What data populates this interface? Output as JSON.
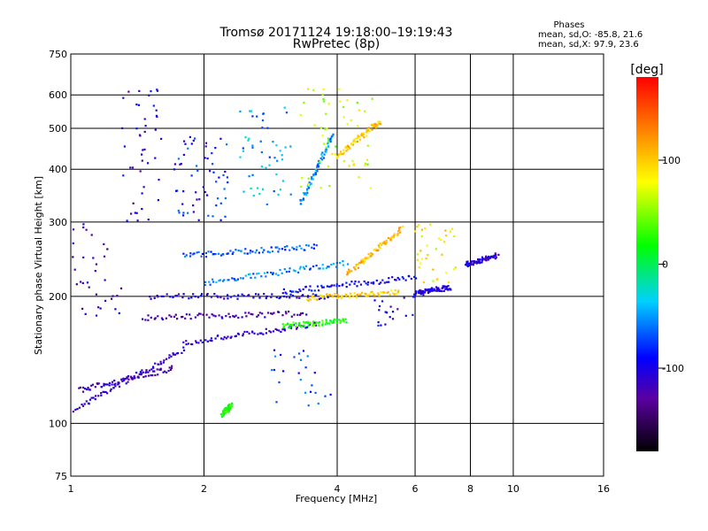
{
  "chart_data": {
    "type": "scatter",
    "title": "Tromsø 20171124 19:18:00–19:19:43",
    "subtitle": "RwPretec (8p)",
    "xlabel": "Frequency [MHz]",
    "ylabel": "Stationary phase Virtual Height [km]",
    "x_scale": "log",
    "y_scale": "log",
    "xlim": [
      1,
      16
    ],
    "ylim": [
      75,
      750
    ],
    "x_ticks": [
      1,
      2,
      4,
      6,
      8,
      10,
      16
    ],
    "x_tick_labels": [
      "1",
      "2",
      "4",
      "6",
      "8",
      "10",
      "16"
    ],
    "y_ticks": [
      75,
      100,
      200,
      300,
      400,
      500,
      600,
      750
    ],
    "y_tick_labels": [
      "75",
      "100",
      "200",
      "300",
      "400",
      "500",
      "600",
      "750"
    ],
    "grid": true,
    "stats": {
      "title": "Phases",
      "line_o": "mean, sd,O: -85.8, 21.6",
      "line_x": "mean, sd,X: 97.9, 23.6"
    },
    "colorbar": {
      "label": "[deg]",
      "range": [
        -180,
        180
      ],
      "ticks": [
        100,
        0,
        -100
      ],
      "tick_labels": [
        "100",
        "0",
        "-100"
      ],
      "placement": "right"
    },
    "traces": [
      {
        "name": "",
        "x_start": 1.02,
        "x_end": 1.8,
        "y_start": 108,
        "y_end": 150,
        "phase": -115
      },
      {
        "name": "",
        "x_start": 1.05,
        "x_end": 1.7,
        "y_start": 120,
        "y_end": 135,
        "phase": -120
      },
      {
        "name": "",
        "x_start": 1.8,
        "x_end": 3.6,
        "y_start": 155,
        "y_end": 172,
        "phase": -110
      },
      {
        "name": "",
        "x_start": 1.45,
        "x_end": 3.4,
        "y_start": 178,
        "y_end": 182,
        "phase": -125
      },
      {
        "name": "",
        "x_start": 1.5,
        "x_end": 3.8,
        "y_start": 200,
        "y_end": 200,
        "phase": -100
      },
      {
        "name": "",
        "x_start": 3.0,
        "x_end": 6.0,
        "y_start": 205,
        "y_end": 222,
        "phase": -95
      },
      {
        "name": "",
        "x_start": 3.0,
        "x_end": 4.2,
        "y_start": 170,
        "y_end": 175,
        "phase": 20
      },
      {
        "name": "",
        "x_start": 3.4,
        "x_end": 5.5,
        "y_start": 198,
        "y_end": 205,
        "phase": 95
      },
      {
        "name": "",
        "x_start": 4.2,
        "x_end": 5.6,
        "y_start": 225,
        "y_end": 290,
        "phase": 105
      },
      {
        "name": "",
        "x_start": 4.0,
        "x_end": 5.0,
        "y_start": 430,
        "y_end": 520,
        "phase": 100
      },
      {
        "name": "",
        "x_start": 6.0,
        "x_end": 7.2,
        "y_start": 203,
        "y_end": 210,
        "phase": -105
      },
      {
        "name": "",
        "x_start": 7.8,
        "x_end": 9.2,
        "y_start": 238,
        "y_end": 250,
        "phase": -110
      },
      {
        "name": "",
        "x_start": 1.8,
        "x_end": 3.6,
        "y_start": 250,
        "y_end": 262,
        "phase": -70
      },
      {
        "name": "",
        "x_start": 2.0,
        "x_end": 4.2,
        "y_start": 215,
        "y_end": 240,
        "phase": -60
      },
      {
        "name": "",
        "x_start": 3.3,
        "x_end": 3.9,
        "y_start": 330,
        "y_end": 480,
        "phase": -55
      },
      {
        "name": "",
        "x_start": 2.2,
        "x_end": 2.3,
        "y_start": 105,
        "y_end": 110,
        "phase": 20
      }
    ],
    "scatter_regions": [
      {
        "x_min": 1.3,
        "x_max": 1.6,
        "y_min": 300,
        "y_max": 620,
        "phase": -110,
        "count": 45
      },
      {
        "name": "",
        "x_min": 1.7,
        "x_max": 2.3,
        "y_min": 300,
        "y_max": 480,
        "phase": -90,
        "count": 60
      },
      {
        "x_min": 2.4,
        "x_max": 3.2,
        "y_min": 330,
        "y_max": 560,
        "phase": -50,
        "count": 50
      },
      {
        "x_min": 3.3,
        "x_max": 4.8,
        "y_min": 360,
        "y_max": 620,
        "phase": 60,
        "count": 55
      },
      {
        "x_min": 1.0,
        "x_max": 1.3,
        "y_min": 180,
        "y_max": 300,
        "phase": -120,
        "count": 35
      },
      {
        "x_min": 6.0,
        "x_max": 7.5,
        "y_min": 215,
        "y_max": 300,
        "phase": 80,
        "count": 35
      },
      {
        "x_min": 2.8,
        "x_max": 3.9,
        "y_min": 110,
        "y_max": 150,
        "phase": -80,
        "count": 25
      },
      {
        "x_min": 4.5,
        "x_max": 6.0,
        "y_min": 170,
        "y_max": 200,
        "phase": -100,
        "count": 20
      }
    ]
  }
}
